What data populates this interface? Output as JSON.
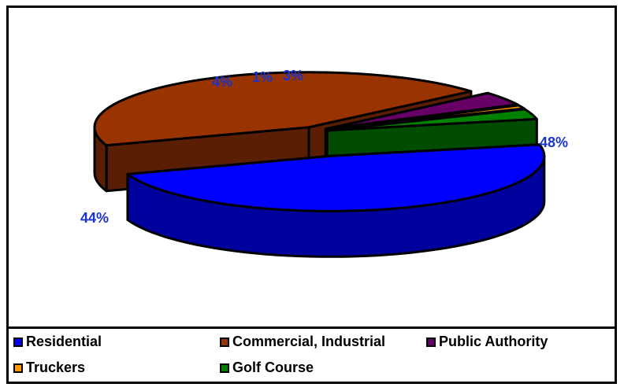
{
  "chart_data": {
    "type": "pie",
    "title": "",
    "style": "3d-exploded",
    "categories": [
      "Residential",
      "Commercial, Industrial",
      "Public Authority",
      "Truckers",
      "Golf Course"
    ],
    "values": [
      48,
      44,
      4,
      1,
      3
    ],
    "data_labels": [
      "48%",
      "44%",
      "4%",
      "1%",
      "3%"
    ],
    "colors": [
      "#0000ff",
      "#993300",
      "#660066",
      "#ff9900",
      "#008000"
    ],
    "side_colors": [
      "#00009c",
      "#5a1e04",
      "#3a003a",
      "#b06a00",
      "#004c00"
    ],
    "label_color": "#1a33cc",
    "legend_position": "bottom"
  }
}
